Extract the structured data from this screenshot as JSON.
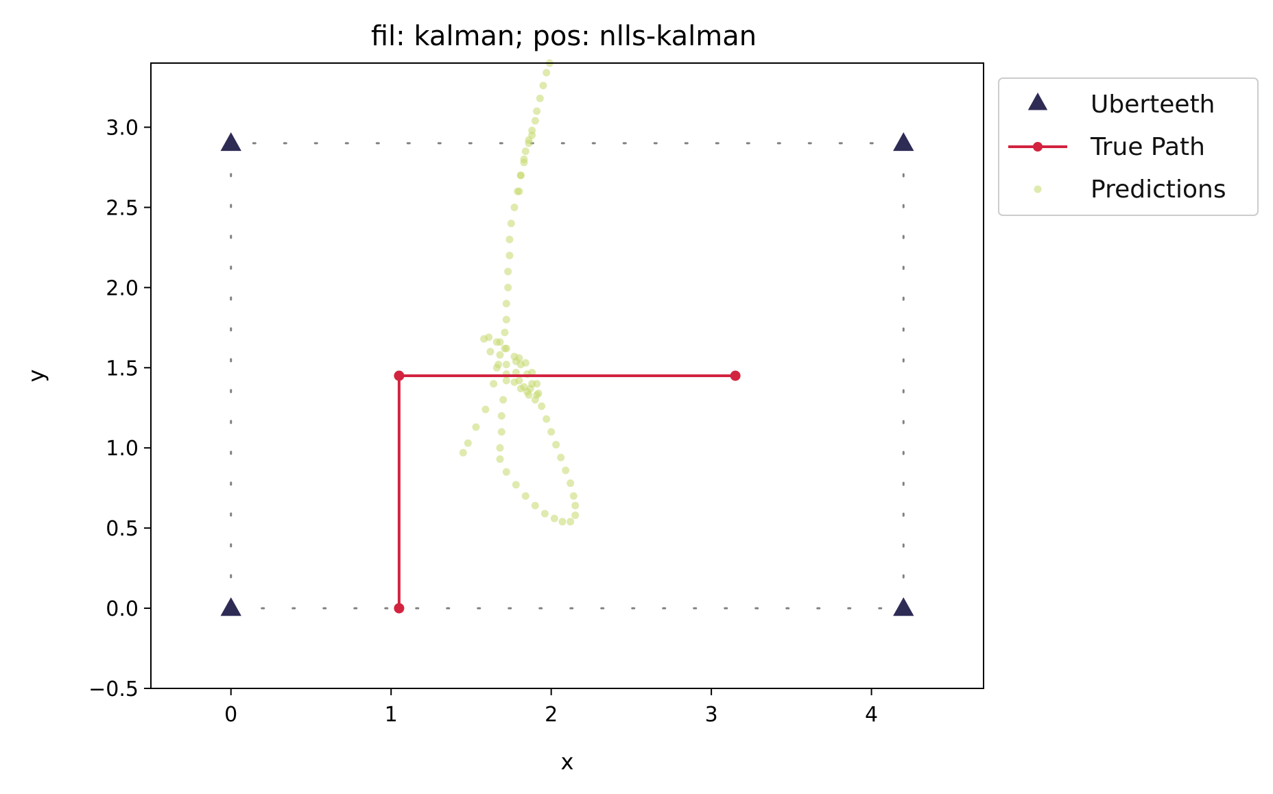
{
  "chart_data": {
    "type": "scatter",
    "title": "fil: kalman; pos: nlls-kalman",
    "xlabel": "x",
    "ylabel": "y",
    "xlim": [
      -0.5,
      4.7
    ],
    "ylim": [
      -0.5,
      3.4
    ],
    "xticks": [
      "0",
      "1",
      "2",
      "3",
      "4"
    ],
    "yticks": [
      "−0.5",
      "0.0",
      "0.5",
      "1.0",
      "1.5",
      "2.0",
      "2.5",
      "3.0"
    ],
    "grid": false,
    "legend_position": "outside-top-right",
    "boundary": {
      "corners": [
        [
          0,
          0
        ],
        [
          4.2,
          0
        ],
        [
          4.2,
          2.9
        ],
        [
          0,
          2.9
        ]
      ],
      "color": "#808080",
      "style": "dotted"
    },
    "series": [
      {
        "name": "Uberteeth",
        "type": "scatter",
        "marker": "triangle",
        "color": "#2e2b55",
        "points": [
          [
            0,
            0
          ],
          [
            4.2,
            0
          ],
          [
            0,
            2.9
          ],
          [
            4.2,
            2.9
          ]
        ]
      },
      {
        "name": "True Path",
        "type": "line",
        "marker": "circle",
        "color": "#d2233f",
        "points": [
          [
            1.05,
            0
          ],
          [
            1.05,
            1.45
          ],
          [
            3.15,
            1.45
          ]
        ]
      },
      {
        "name": "Predictions",
        "type": "scatter",
        "marker": "circle",
        "color": "#c5d86d",
        "points": [
          [
            1.45,
            0.97
          ],
          [
            1.48,
            1.03
          ],
          [
            1.53,
            1.13
          ],
          [
            1.59,
            1.24
          ],
          [
            1.64,
            1.4
          ],
          [
            1.66,
            1.5
          ],
          [
            1.68,
            1.58
          ],
          [
            1.68,
            1.66
          ],
          [
            1.71,
            1.72
          ],
          [
            1.72,
            1.8
          ],
          [
            1.72,
            1.9
          ],
          [
            1.73,
            2.0
          ],
          [
            1.73,
            2.1
          ],
          [
            1.74,
            2.2
          ],
          [
            1.74,
            2.3
          ],
          [
            1.75,
            2.4
          ],
          [
            1.77,
            2.5
          ],
          [
            1.79,
            2.6
          ],
          [
            1.81,
            2.7
          ],
          [
            1.83,
            2.8
          ],
          [
            1.86,
            2.9
          ],
          [
            1.88,
            2.95
          ],
          [
            1.8,
            2.6
          ],
          [
            1.81,
            2.7
          ],
          [
            1.83,
            2.78
          ],
          [
            1.84,
            2.85
          ],
          [
            1.86,
            2.92
          ],
          [
            1.88,
            2.98
          ],
          [
            1.9,
            3.04
          ],
          [
            1.91,
            3.1
          ],
          [
            1.93,
            3.18
          ],
          [
            1.95,
            3.26
          ],
          [
            1.97,
            3.34
          ],
          [
            1.99,
            3.4
          ],
          [
            1.71,
            1.62
          ],
          [
            1.72,
            1.52
          ],
          [
            1.72,
            1.42
          ],
          [
            1.7,
            1.3
          ],
          [
            1.69,
            1.2
          ],
          [
            1.69,
            1.1
          ],
          [
            1.68,
            1.0
          ],
          [
            1.68,
            0.93
          ],
          [
            1.72,
            0.85
          ],
          [
            1.78,
            0.77
          ],
          [
            1.84,
            0.7
          ],
          [
            1.9,
            0.64
          ],
          [
            1.96,
            0.59
          ],
          [
            2.02,
            0.56
          ],
          [
            2.07,
            0.54
          ],
          [
            2.12,
            0.54
          ],
          [
            2.15,
            0.58
          ],
          [
            2.15,
            0.64
          ],
          [
            2.14,
            0.7
          ],
          [
            2.12,
            0.78
          ],
          [
            2.09,
            0.86
          ],
          [
            2.06,
            0.94
          ],
          [
            2.03,
            1.02
          ],
          [
            2.0,
            1.1
          ],
          [
            1.97,
            1.18
          ],
          [
            1.94,
            1.26
          ],
          [
            1.91,
            1.33
          ],
          [
            1.88,
            1.4
          ],
          [
            1.85,
            1.46
          ],
          [
            1.81,
            1.52
          ],
          [
            1.77,
            1.57
          ],
          [
            1.72,
            1.62
          ],
          [
            1.66,
            1.66
          ],
          [
            1.61,
            1.69
          ],
          [
            1.58,
            1.68
          ],
          [
            1.62,
            1.6
          ],
          [
            1.67,
            1.52
          ],
          [
            1.72,
            1.46
          ],
          [
            1.77,
            1.41
          ],
          [
            1.81,
            1.37
          ],
          [
            1.86,
            1.33
          ],
          [
            1.9,
            1.3
          ],
          [
            1.92,
            1.34
          ],
          [
            1.91,
            1.4
          ],
          [
            1.88,
            1.47
          ],
          [
            1.84,
            1.53
          ],
          [
            1.8,
            1.56
          ],
          [
            1.78,
            1.54
          ],
          [
            1.78,
            1.47
          ],
          [
            1.8,
            1.42
          ],
          [
            1.83,
            1.38
          ],
          [
            1.85,
            1.35
          ],
          [
            1.87,
            1.37
          ]
        ]
      }
    ]
  }
}
